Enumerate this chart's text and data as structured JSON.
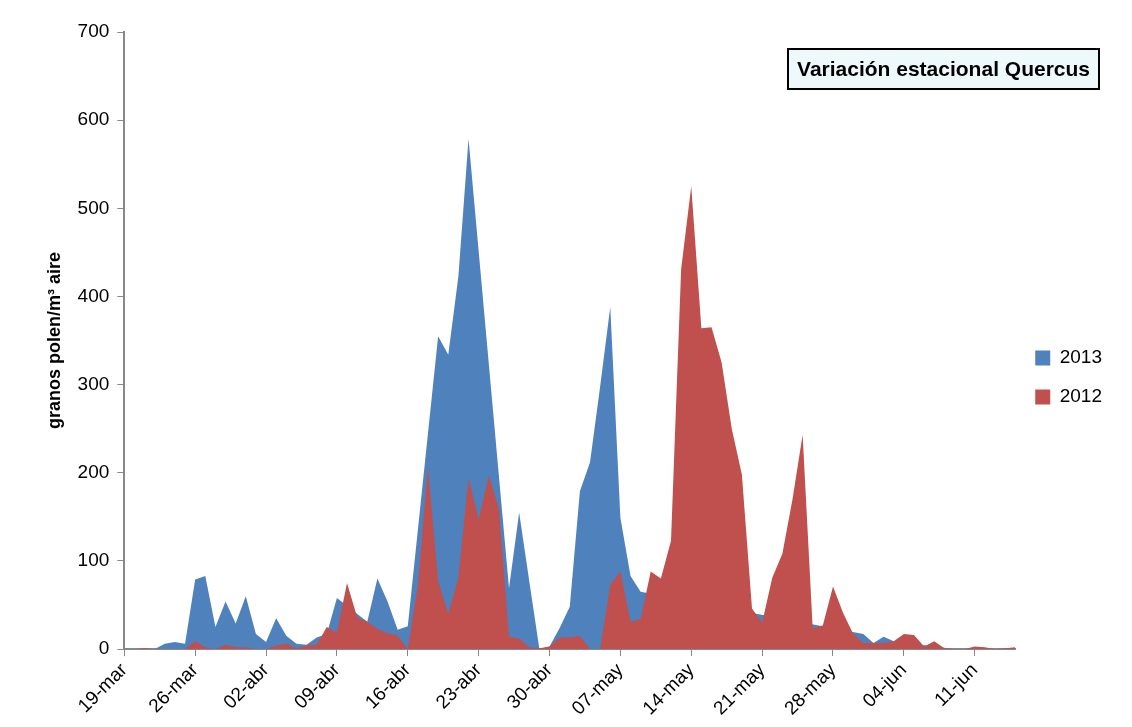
{
  "chart_data": {
    "type": "area",
    "title": "Variación estacional Quercus",
    "ylabel": "granos polen/m³ aire",
    "categories": [
      "19-mar",
      null,
      null,
      null,
      null,
      null,
      null,
      "26-mar",
      null,
      null,
      null,
      null,
      null,
      null,
      "02-abr",
      null,
      null,
      null,
      null,
      null,
      null,
      "09-abr",
      null,
      null,
      null,
      null,
      null,
      null,
      "16-abr",
      null,
      null,
      null,
      null,
      null,
      null,
      "23-abr",
      null,
      null,
      null,
      null,
      null,
      null,
      "30-abr",
      null,
      null,
      null,
      null,
      null,
      null,
      "07-may",
      null,
      null,
      null,
      null,
      null,
      null,
      "14-may",
      null,
      null,
      null,
      null,
      null,
      null,
      "21-may",
      null,
      null,
      null,
      null,
      null,
      null,
      "28-may",
      null,
      null,
      null,
      null,
      null,
      null,
      "04-jun",
      null,
      null,
      null,
      null,
      null,
      null,
      "11-jun",
      null,
      null,
      null,
      null
    ],
    "series": [
      {
        "name": "2013",
        "color": "#4f81bd",
        "values": [
          0,
          0,
          0,
          0,
          6,
          8,
          6,
          79,
          83,
          25,
          54,
          29,
          60,
          17,
          8,
          35,
          15,
          6,
          5,
          13,
          17,
          58,
          null,
          null,
          31,
          80,
          54,
          22,
          26,
          null,
          null,
          355,
          334,
          423,
          579,
          null,
          null,
          null,
          69,
          155,
          77,
          0,
          3,
          24,
          48,
          179,
          212,
          298,
          388,
          149,
          83,
          65,
          null,
          null,
          null,
          null,
          null,
          null,
          null,
          null,
          null,
          null,
          null,
          null,
          null,
          null,
          null,
          null,
          null,
          null,
          null,
          null,
          null,
          17,
          7,
          14,
          9,
          null,
          null,
          null,
          null,
          null,
          0,
          0,
          null,
          null,
          0,
          null,
          null
        ]
      },
      {
        "name": "2012",
        "color": "#c0504d",
        "values": [
          0,
          0,
          1,
          0,
          0,
          0,
          0,
          9,
          2,
          0,
          5,
          2,
          2,
          0,
          0,
          4,
          6,
          1,
          4,
          5,
          25,
          19,
          75,
          36,
          31,
          23,
          18,
          15,
          0,
          73,
          206,
          77,
          40,
          81,
          194,
          147,
          197,
          159,
          14,
          12,
          2,
          1,
          3,
          13,
          13,
          15,
          0,
          0,
          73,
          88,
          31,
          34,
          88,
          80,
          123,
          431,
          525,
          364,
          365,
          325,
          250,
          198,
          46,
          30,
          81,
          108,
          170,
          243,
          23,
          27,
          71,
          41,
          17,
          7,
          7,
          7,
          9,
          17,
          16,
          3,
          9,
          1,
          0,
          0,
          3,
          2,
          0,
          1,
          2
        ]
      }
    ],
    "ylim": [
      0,
      700
    ],
    "yticks": [
      0,
      100,
      200,
      300,
      400,
      500,
      600,
      700
    ],
    "legend": "right"
  }
}
